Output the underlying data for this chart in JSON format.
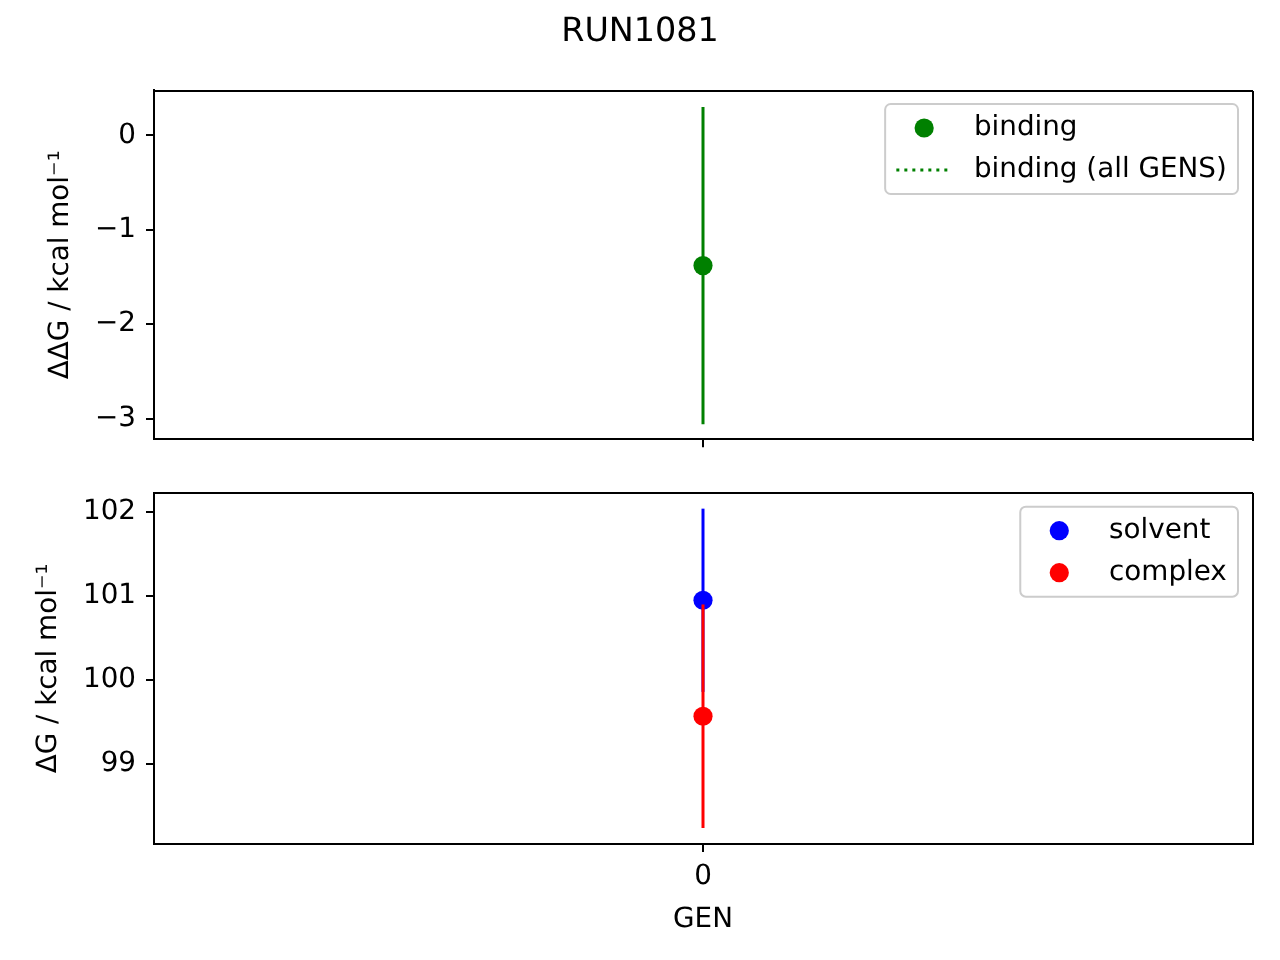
{
  "chart_data": [
    {
      "type": "scatter",
      "title": "RUN1081",
      "ylabel": "ΔΔG / kcal mol⁻¹",
      "categories": [
        null
      ],
      "series": [
        {
          "name": "binding",
          "color": "#008000",
          "values": [
            -1.38
          ],
          "errors": [
            1.68
          ]
        },
        {
          "name": "binding (all GENS)",
          "type": "line",
          "color": "#008000",
          "line_style": "dotted",
          "values": [
            null
          ]
        }
      ],
      "ylim": [
        -3.22,
        0.48
      ],
      "yticks": [
        -3,
        -2,
        -1,
        0
      ],
      "legend": "top right",
      "marker": "circle",
      "tick_labels": "y"
    },
    {
      "type": "scatter",
      "xlabel": "GEN",
      "ylabel": "ΔG / kcal mol⁻¹",
      "categories": [
        "0"
      ],
      "series": [
        {
          "name": "solvent",
          "color": "#0000ff",
          "values": [
            100.95
          ],
          "errors": [
            1.09
          ]
        },
        {
          "name": "complex",
          "color": "#ff0000",
          "values": [
            99.57
          ],
          "errors": [
            1.33
          ]
        }
      ],
      "ylim": [
        98.05,
        102.23
      ],
      "yticks": [
        99,
        100,
        101,
        102
      ],
      "legend": "top right",
      "marker": "circle"
    }
  ]
}
